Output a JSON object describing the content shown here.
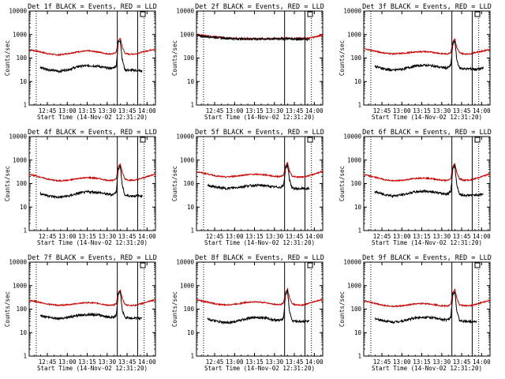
{
  "figure": {
    "background": "#ffffff",
    "series_colors": {
      "events": "#000000",
      "lld": "#cc0000"
    }
  },
  "chart_data": [
    {
      "type": "line",
      "title": "Det 1f BLACK = Events, RED = LLD",
      "xlabel": "Start Time (14-Nov-02 12:31:20)",
      "ylabel": "Counts/sec",
      "yscale": "log",
      "ylim": [
        1,
        10000
      ],
      "y_ticks": [
        "1",
        "10",
        "100",
        "1000",
        "10000"
      ],
      "x_tick_labels": [
        "12:45",
        "13:00",
        "13:15",
        "13:30",
        "13:45",
        "14:00"
      ],
      "x_ticks_min": [
        13.67,
        28.67,
        43.67,
        58.67,
        73.67,
        88.67
      ],
      "xlim_min": [
        0,
        95
      ],
      "vlines_dotted_min": [
        5.3,
        86.5
      ],
      "vlines_solid_min": [
        66.3,
        81.6
      ],
      "x": [
        0,
        8,
        15,
        22,
        30,
        38,
        45,
        52,
        58,
        63,
        65.5,
        67,
        68.5,
        70,
        72,
        75,
        80,
        85,
        90,
        95
      ],
      "series": [
        {
          "name": "RED",
          "color": "#cc0000",
          "values": [
            230,
            185,
            150,
            135,
            158,
            190,
            202,
            182,
            152,
            150,
            180,
            520,
            720,
            300,
            160,
            145,
            150,
            180,
            210,
            245
          ]
        },
        {
          "name": "BLACK",
          "color": "#000000",
          "values": [
            null,
            40,
            32,
            27,
            33,
            45,
            48,
            45,
            38,
            37,
            47,
            450,
            600,
            90,
            32,
            30,
            30,
            28,
            null,
            null
          ]
        }
      ]
    },
    {
      "type": "line",
      "title": "Det 2f BLACK = Events, RED = LLD",
      "xlabel": "Start Time (14-Nov-02 12:31:20)",
      "ylabel": "Counts/sec",
      "yscale": "log",
      "ylim": [
        1,
        10000
      ],
      "y_ticks": [
        "1",
        "10",
        "100",
        "1000",
        "10000"
      ],
      "x_tick_labels": [
        "12:45",
        "13:00",
        "13:15",
        "13:30",
        "13:45",
        "14:00"
      ],
      "x_ticks_min": [
        13.67,
        28.67,
        43.67,
        58.67,
        73.67,
        88.67
      ],
      "xlim_min": [
        0,
        95
      ],
      "vlines_dotted_min": [
        5.3,
        86.5
      ],
      "vlines_solid_min": [
        66.3,
        81.6
      ],
      "x": [
        0,
        8,
        15,
        22,
        30,
        38,
        45,
        52,
        58,
        63,
        65.5,
        67,
        68.5,
        70,
        72,
        75,
        80,
        85,
        90,
        95
      ],
      "series": [
        {
          "name": "RED",
          "color": "#cc0000",
          "values": [
            1000,
            880,
            790,
            720,
            680,
            660,
            655,
            660,
            670,
            680,
            685,
            700,
            700,
            690,
            690,
            690,
            700,
            720,
            800,
            1000
          ]
        },
        {
          "name": "BLACK",
          "color": "#000000",
          "values": [
            900,
            820,
            760,
            700,
            660,
            650,
            650,
            650,
            660,
            670,
            670,
            680,
            680,
            670,
            660,
            650,
            640,
            620,
            null,
            null
          ]
        }
      ]
    },
    {
      "type": "line",
      "title": "Det 3f BLACK = Events, RED = LLD",
      "xlabel": "Start Time (14-Nov-02 12:31:20)",
      "ylabel": "Counts/sec",
      "yscale": "log",
      "ylim": [
        1,
        10000
      ],
      "y_ticks": [
        "1",
        "10",
        "100",
        "1000",
        "10000"
      ],
      "x_tick_labels": [
        "12:45",
        "13:00",
        "13:15",
        "13:30",
        "13:45",
        "14:00"
      ],
      "x_ticks_min": [
        13.67,
        28.67,
        43.67,
        58.67,
        73.67,
        88.67
      ],
      "xlim_min": [
        0,
        95
      ],
      "vlines_dotted_min": [
        5.3,
        86.5
      ],
      "vlines_solid_min": [
        66.3,
        81.6
      ],
      "x": [
        0,
        8,
        15,
        22,
        30,
        38,
        45,
        52,
        58,
        63,
        65.5,
        67,
        68.5,
        70,
        72,
        75,
        80,
        85,
        90,
        95
      ],
      "series": [
        {
          "name": "RED",
          "color": "#cc0000",
          "values": [
            250,
            200,
            165,
            150,
            160,
            180,
            190,
            175,
            155,
            150,
            175,
            480,
            650,
            280,
            170,
            150,
            150,
            180,
            200,
            240
          ]
        },
        {
          "name": "BLACK",
          "color": "#000000",
          "values": [
            null,
            45,
            35,
            30,
            35,
            45,
            50,
            47,
            40,
            38,
            48,
            400,
            550,
            85,
            38,
            35,
            35,
            33,
            37,
            null
          ]
        }
      ]
    },
    {
      "type": "line",
      "title": "Det 4f BLACK = Events, RED = LLD",
      "xlabel": "Start Time (14-Nov-02 12:31:20)",
      "ylabel": "Counts/sec",
      "yscale": "log",
      "ylim": [
        1,
        10000
      ],
      "y_ticks": [
        "1",
        "10",
        "100",
        "1000",
        "10000"
      ],
      "x_tick_labels": [
        "12:45",
        "13:00",
        "13:15",
        "13:30",
        "13:45",
        "14:00"
      ],
      "x_ticks_min": [
        13.67,
        28.67,
        43.67,
        58.67,
        73.67,
        88.67
      ],
      "xlim_min": [
        0,
        95
      ],
      "vlines_dotted_min": [
        5.3,
        86.5
      ],
      "vlines_solid_min": [
        66.3,
        81.6
      ],
      "x": [
        0,
        8,
        15,
        22,
        30,
        38,
        45,
        52,
        58,
        63,
        65.5,
        67,
        68.5,
        70,
        72,
        75,
        80,
        85,
        90,
        95
      ],
      "series": [
        {
          "name": "RED",
          "color": "#cc0000",
          "values": [
            250,
            190,
            150,
            130,
            140,
            170,
            180,
            165,
            140,
            135,
            165,
            500,
            700,
            300,
            160,
            140,
            140,
            170,
            210,
            260
          ]
        },
        {
          "name": "BLACK",
          "color": "#000000",
          "values": [
            null,
            38,
            30,
            26,
            30,
            40,
            45,
            42,
            36,
            34,
            45,
            420,
            580,
            85,
            32,
            30,
            30,
            30,
            null,
            null
          ]
        }
      ]
    },
    {
      "type": "line",
      "title": "Det 5f BLACK = Events, RED = LLD",
      "xlabel": "Start Time (14-Nov-02 12:31:20)",
      "ylabel": "Counts/sec",
      "yscale": "log",
      "ylim": [
        1,
        10000
      ],
      "y_ticks": [
        "1",
        "10",
        "100",
        "1000",
        "10000"
      ],
      "x_tick_labels": [
        "12:45",
        "13:00",
        "13:15",
        "13:30",
        "13:45",
        "14:00"
      ],
      "x_ticks_min": [
        13.67,
        28.67,
        43.67,
        58.67,
        73.67,
        88.67
      ],
      "xlim_min": [
        0,
        95
      ],
      "vlines_dotted_min": [
        5.3,
        86.5
      ],
      "vlines_solid_min": [
        66.3,
        81.6
      ],
      "x": [
        0,
        8,
        15,
        22,
        30,
        38,
        45,
        52,
        58,
        63,
        65.5,
        67,
        68.5,
        70,
        72,
        75,
        80,
        85,
        90,
        95
      ],
      "series": [
        {
          "name": "RED",
          "color": "#cc0000",
          "values": [
            320,
            260,
            210,
            190,
            210,
            240,
            250,
            235,
            205,
            200,
            230,
            550,
            780,
            340,
            210,
            190,
            190,
            220,
            270,
            330
          ]
        },
        {
          "name": "BLACK",
          "color": "#000000",
          "values": [
            null,
            85,
            70,
            62,
            68,
            80,
            85,
            82,
            72,
            70,
            80,
            450,
            620,
            150,
            65,
            60,
            62,
            60,
            null,
            null
          ]
        }
      ]
    },
    {
      "type": "line",
      "title": "Det 6f BLACK = Events, RED = LLD",
      "xlabel": "Start Time (14-Nov-02 12:31:20)",
      "ylabel": "Counts/sec",
      "yscale": "log",
      "ylim": [
        1,
        10000
      ],
      "y_ticks": [
        "1",
        "10",
        "100",
        "1000",
        "10000"
      ],
      "x_tick_labels": [
        "12:45",
        "13:00",
        "13:15",
        "13:30",
        "13:45",
        "14:00"
      ],
      "x_ticks_min": [
        13.67,
        28.67,
        43.67,
        58.67,
        73.67,
        88.67
      ],
      "xlim_min": [
        0,
        95
      ],
      "vlines_dotted_min": [
        5.3,
        86.5
      ],
      "vlines_solid_min": [
        66.3,
        81.6
      ],
      "x": [
        0,
        8,
        15,
        22,
        30,
        38,
        45,
        52,
        58,
        63,
        65.5,
        67,
        68.5,
        70,
        72,
        75,
        80,
        85,
        90,
        95
      ],
      "series": [
        {
          "name": "RED",
          "color": "#cc0000",
          "values": [
            240,
            190,
            150,
            130,
            140,
            165,
            175,
            160,
            140,
            135,
            165,
            520,
            720,
            300,
            160,
            140,
            140,
            170,
            210,
            260
          ]
        },
        {
          "name": "BLACK",
          "color": "#000000",
          "values": [
            null,
            45,
            35,
            30,
            34,
            44,
            48,
            45,
            38,
            36,
            47,
            430,
            600,
            90,
            35,
            32,
            32,
            33,
            36,
            null
          ]
        }
      ]
    },
    {
      "type": "line",
      "title": "Det 7f BLACK = Events, RED = LLD",
      "xlabel": "Start Time (14-Nov-02 12:31:20)",
      "ylabel": "Counts/sec",
      "yscale": "log",
      "ylim": [
        1,
        10000
      ],
      "y_ticks": [
        "1",
        "10",
        "100",
        "1000",
        "10000"
      ],
      "x_tick_labels": [
        "12:45",
        "13:00",
        "13:15",
        "13:30",
        "13:45",
        "14:00"
      ],
      "x_ticks_min": [
        13.67,
        28.67,
        43.67,
        58.67,
        73.67,
        88.67
      ],
      "xlim_min": [
        0,
        95
      ],
      "vlines_dotted_min": [
        5.3,
        86.5
      ],
      "vlines_solid_min": [
        66.3,
        81.6
      ],
      "x": [
        0,
        8,
        15,
        22,
        30,
        38,
        45,
        52,
        58,
        63,
        65.5,
        67,
        68.5,
        70,
        72,
        75,
        80,
        85,
        90,
        95
      ],
      "series": [
        {
          "name": "RED",
          "color": "#cc0000",
          "values": [
            240,
            195,
            160,
            145,
            155,
            180,
            190,
            175,
            150,
            145,
            170,
            480,
            650,
            280,
            160,
            145,
            145,
            175,
            210,
            250
          ]
        },
        {
          "name": "BLACK",
          "color": "#000000",
          "values": [
            null,
            55,
            45,
            40,
            45,
            55,
            60,
            57,
            48,
            45,
            55,
            420,
            560,
            95,
            45,
            42,
            42,
            40,
            null,
            null
          ]
        }
      ]
    },
    {
      "type": "line",
      "title": "Det 8f BLACK = Events, RED = LLD",
      "xlabel": "Start Time (14-Nov-02 12:31:20)",
      "ylabel": "Counts/sec",
      "yscale": "log",
      "ylim": [
        1,
        10000
      ],
      "y_ticks": [
        "1",
        "10",
        "100",
        "1000",
        "10000"
      ],
      "x_tick_labels": [
        "12:45",
        "13:00",
        "13:15",
        "13:30",
        "13:45",
        "14:00"
      ],
      "x_ticks_min": [
        13.67,
        28.67,
        43.67,
        58.67,
        73.67,
        88.67
      ],
      "xlim_min": [
        0,
        95
      ],
      "vlines_dotted_min": [
        5.3,
        86.5
      ],
      "vlines_solid_min": [
        66.3,
        81.6
      ],
      "x": [
        0,
        8,
        15,
        22,
        30,
        38,
        45,
        52,
        58,
        63,
        65.5,
        67,
        68.5,
        70,
        72,
        75,
        80,
        85,
        90,
        95
      ],
      "series": [
        {
          "name": "RED",
          "color": "#cc0000",
          "values": [
            250,
            200,
            165,
            150,
            165,
            195,
            205,
            190,
            160,
            155,
            185,
            520,
            720,
            300,
            170,
            150,
            150,
            180,
            220,
            260
          ]
        },
        {
          "name": "BLACK",
          "color": "#000000",
          "values": [
            null,
            38,
            30,
            26,
            30,
            40,
            45,
            42,
            35,
            33,
            42,
            420,
            600,
            80,
            32,
            30,
            30,
            30,
            null,
            null
          ]
        }
      ]
    },
    {
      "type": "line",
      "title": "Det 9f BLACK = Events, RED = LLD",
      "xlabel": "Start Time (14-Nov-02 12:31:20)",
      "ylabel": "Counts/sec",
      "yscale": "log",
      "ylim": [
        1,
        10000
      ],
      "y_ticks": [
        "1",
        "10",
        "100",
        "1000",
        "10000"
      ],
      "x_tick_labels": [
        "12:45",
        "13:00",
        "13:15",
        "13:30",
        "13:45",
        "14:00"
      ],
      "x_ticks_min": [
        13.67,
        28.67,
        43.67,
        58.67,
        73.67,
        88.67
      ],
      "xlim_min": [
        0,
        95
      ],
      "vlines_dotted_min": [
        5.3,
        86.5
      ],
      "vlines_solid_min": [
        66.3,
        81.6
      ],
      "x": [
        0,
        8,
        15,
        22,
        30,
        38,
        45,
        52,
        58,
        63,
        65.5,
        67,
        68.5,
        70,
        72,
        75,
        80,
        85,
        90,
        95
      ],
      "series": [
        {
          "name": "RED",
          "color": "#cc0000",
          "values": [
            230,
            180,
            145,
            130,
            140,
            165,
            175,
            160,
            140,
            135,
            160,
            500,
            700,
            290,
            155,
            140,
            140,
            165,
            200,
            240
          ]
        },
        {
          "name": "BLACK",
          "color": "#000000",
          "values": [
            null,
            40,
            32,
            28,
            32,
            42,
            46,
            43,
            37,
            35,
            45,
            430,
            600,
            85,
            33,
            30,
            30,
            30,
            null,
            null
          ]
        }
      ]
    }
  ]
}
